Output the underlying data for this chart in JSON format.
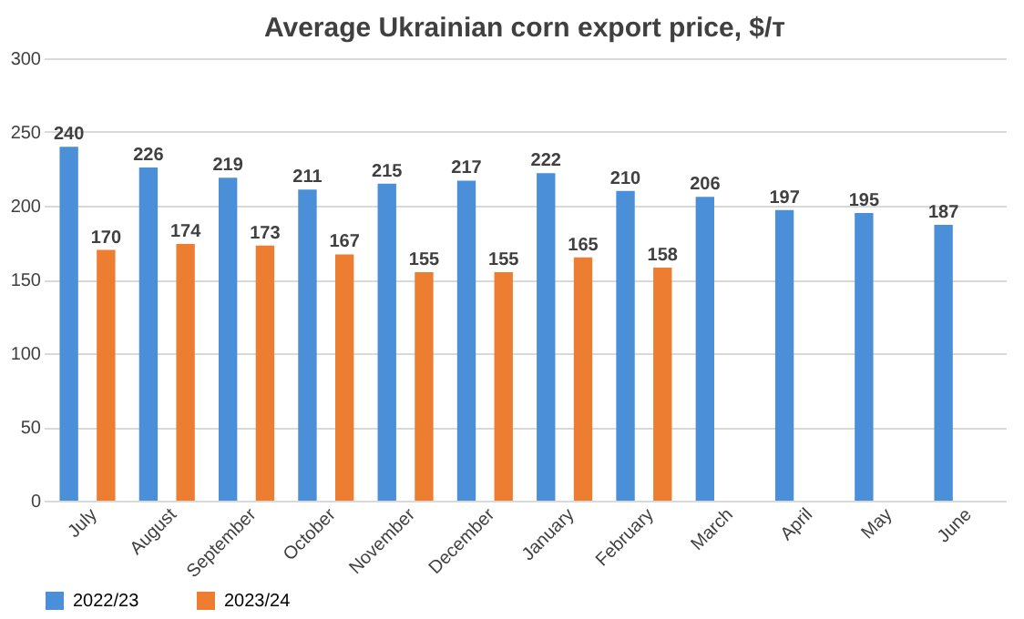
{
  "chart_data": {
    "type": "bar",
    "title": "Average Ukrainian corn export price, $/т",
    "categories": [
      "July",
      "August",
      "September",
      "October",
      "November",
      "December",
      "January",
      "February",
      "March",
      "April",
      "May",
      "June"
    ],
    "series": [
      {
        "name": "2022/23",
        "color": "#4a8fd8",
        "values": [
          240,
          226,
          219,
          211,
          215,
          217,
          222,
          210,
          206,
          197,
          195,
          187
        ]
      },
      {
        "name": "2023/24",
        "color": "#ed7d31",
        "values": [
          170,
          174,
          173,
          167,
          155,
          155,
          165,
          158,
          null,
          null,
          null,
          null
        ]
      }
    ],
    "ylim": [
      0,
      300
    ],
    "yticks": [
      0,
      50,
      100,
      150,
      200,
      250,
      300
    ],
    "grid": "y",
    "legend": "bottom",
    "data_labels": true
  }
}
